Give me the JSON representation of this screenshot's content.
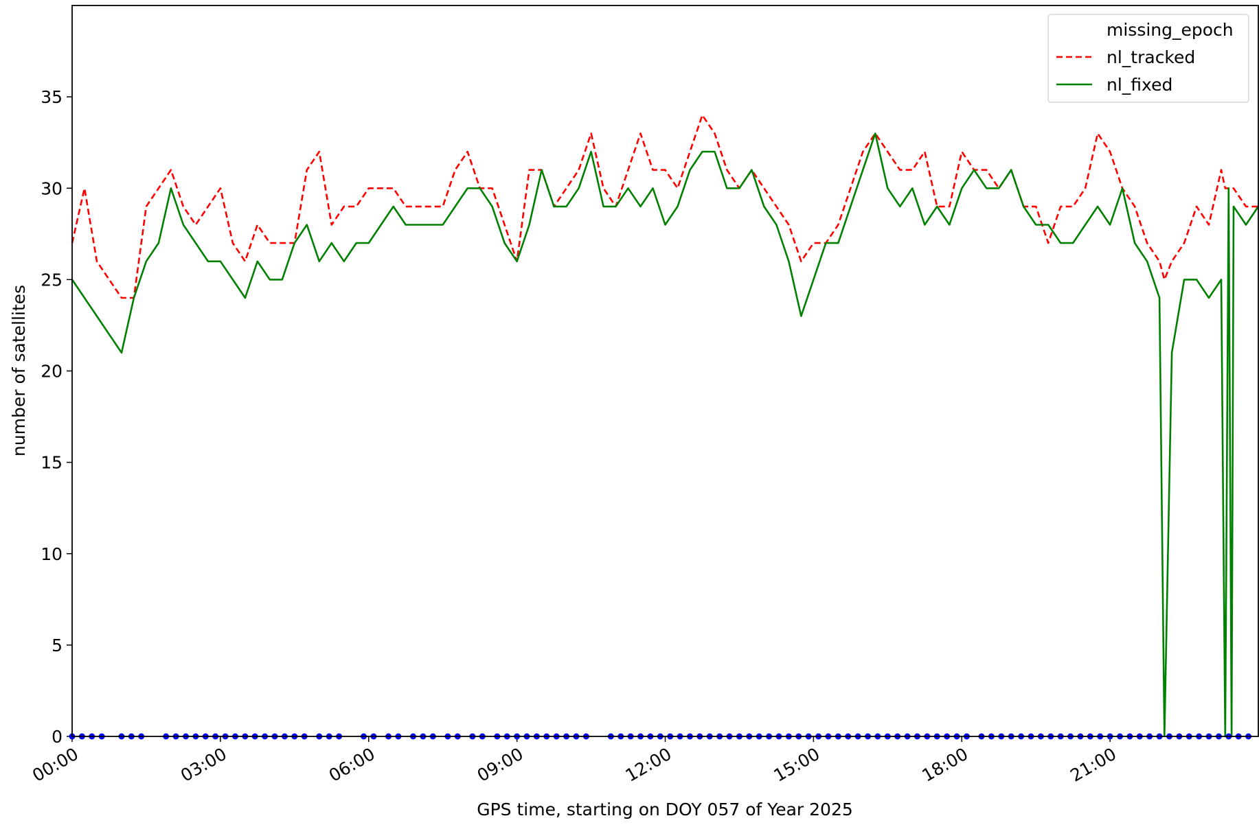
{
  "chart_data": {
    "type": "line",
    "xlabel": "GPS time, starting on DOY 057 of Year 2025",
    "ylabel": "number of satellites",
    "xlim": [
      0,
      24
    ],
    "ylim": [
      0,
      40
    ],
    "xticks": [
      {
        "value": 0,
        "label": "00:00"
      },
      {
        "value": 3,
        "label": "03:00"
      },
      {
        "value": 6,
        "label": "06:00"
      },
      {
        "value": 9,
        "label": "09:00"
      },
      {
        "value": 12,
        "label": "12:00"
      },
      {
        "value": 15,
        "label": "15:00"
      },
      {
        "value": 18,
        "label": "18:00"
      },
      {
        "value": 21,
        "label": "21:00"
      }
    ],
    "yticks": [
      0,
      5,
      10,
      15,
      20,
      25,
      30,
      35
    ],
    "legend": "upper right",
    "x": [
      0,
      0.25,
      0.5,
      0.75,
      1,
      1.25,
      1.5,
      1.75,
      2,
      2.25,
      2.5,
      2.75,
      3,
      3.25,
      3.5,
      3.75,
      4,
      4.25,
      4.5,
      4.75,
      5,
      5.25,
      5.5,
      5.75,
      6,
      6.25,
      6.5,
      6.75,
      7,
      7.25,
      7.5,
      7.75,
      8,
      8.25,
      8.5,
      8.75,
      9,
      9.25,
      9.5,
      9.75,
      10,
      10.25,
      10.5,
      10.75,
      11,
      11.25,
      11.5,
      11.75,
      12,
      12.25,
      12.5,
      12.75,
      13,
      13.25,
      13.5,
      13.75,
      14,
      14.25,
      14.5,
      14.75,
      15,
      15.25,
      15.5,
      15.75,
      16,
      16.25,
      16.5,
      16.75,
      17,
      17.25,
      17.5,
      17.75,
      18,
      18.25,
      18.5,
      18.75,
      19,
      19.25,
      19.5,
      19.75,
      20,
      20.25,
      20.5,
      20.75,
      21,
      21.25,
      21.5,
      21.75,
      22,
      22.1,
      22.25,
      22.5,
      22.75,
      23,
      23.25,
      23.33,
      23.4,
      23.46,
      23.5,
      23.75,
      24
    ],
    "series": [
      {
        "name": "missing_epoch",
        "color": "#0000ff",
        "style": "dots",
        "x": [
          0,
          0.2,
          0.4,
          0.6,
          1.0,
          1.2,
          1.4,
          1.9,
          2.1,
          2.3,
          2.5,
          2.7,
          2.9,
          3.1,
          3.3,
          3.5,
          3.7,
          3.9,
          4.1,
          4.3,
          4.5,
          4.7,
          5.0,
          5.2,
          5.4,
          5.9,
          6.1,
          6.4,
          6.6,
          6.9,
          7.1,
          7.3,
          7.6,
          7.8,
          8.1,
          8.3,
          8.6,
          8.8,
          9.0,
          9.2,
          9.4,
          9.6,
          9.8,
          10.0,
          10.2,
          10.4,
          10.9,
          11.1,
          11.3,
          11.5,
          11.7,
          11.9,
          12.1,
          12.3,
          12.5,
          12.7,
          12.9,
          13.1,
          13.3,
          13.5,
          13.7,
          13.9,
          14.1,
          14.3,
          14.5,
          14.7,
          14.9,
          15.1,
          15.3,
          15.5,
          15.7,
          15.9,
          16.1,
          16.3,
          16.5,
          16.7,
          16.9,
          17.1,
          17.3,
          17.5,
          17.7,
          17.9,
          18.1,
          18.4,
          18.6,
          18.8,
          19.0,
          19.2,
          19.4,
          19.6,
          19.8,
          20.0,
          20.2,
          20.4,
          20.6,
          20.8,
          21.0,
          21.2,
          21.4,
          21.6,
          21.8,
          22.0,
          22.2,
          22.4,
          22.6,
          22.8,
          23.0,
          23.2,
          23.4,
          23.6,
          23.8
        ],
        "values": [
          0,
          0,
          0,
          0,
          0,
          0,
          0,
          0,
          0,
          0,
          0,
          0,
          0,
          0,
          0,
          0,
          0,
          0,
          0,
          0,
          0,
          0,
          0,
          0,
          0,
          0,
          0,
          0,
          0,
          0,
          0,
          0,
          0,
          0,
          0,
          0,
          0,
          0,
          0,
          0,
          0,
          0,
          0,
          0,
          0,
          0,
          0,
          0,
          0,
          0,
          0,
          0,
          0,
          0,
          0,
          0,
          0,
          0,
          0,
          0,
          0,
          0,
          0,
          0,
          0,
          0,
          0,
          0,
          0,
          0,
          0,
          0,
          0,
          0,
          0,
          0,
          0,
          0,
          0,
          0,
          0,
          0,
          0,
          0,
          0,
          0,
          0,
          0,
          0,
          0,
          0,
          0,
          0,
          0,
          0,
          0,
          0,
          0,
          0,
          0,
          0,
          0,
          0,
          0,
          0,
          0,
          0,
          0,
          0,
          0,
          0
        ]
      },
      {
        "name": "nl_tracked",
        "color": "#ff0000",
        "style": "dashed",
        "values": [
          27,
          30,
          26,
          25,
          24,
          24,
          29,
          30,
          31,
          29,
          28,
          29,
          30,
          27,
          26,
          28,
          27,
          27,
          27,
          31,
          32,
          28,
          29,
          29,
          30,
          30,
          30,
          29,
          29,
          29,
          29,
          31,
          32,
          30,
          30,
          28,
          26,
          31,
          31,
          29,
          30,
          31,
          33,
          30,
          29,
          31,
          33,
          31,
          31,
          30,
          32,
          34,
          33,
          31,
          30,
          31,
          30,
          29,
          28,
          26,
          27,
          27,
          28,
          30,
          32,
          33,
          32,
          31,
          31,
          32,
          29,
          29,
          32,
          31,
          31,
          30,
          31,
          29,
          29,
          27,
          29,
          29,
          30,
          33,
          32,
          30,
          29,
          27,
          26,
          25,
          26,
          27,
          29,
          28,
          31,
          30,
          30,
          30,
          30,
          29,
          29
        ]
      },
      {
        "name": "nl_fixed",
        "color": "#008000",
        "style": "solid",
        "values": [
          25,
          24,
          23,
          22,
          21,
          24,
          26,
          27,
          30,
          28,
          27,
          26,
          26,
          25,
          24,
          26,
          25,
          25,
          27,
          28,
          26,
          27,
          26,
          27,
          27,
          28,
          29,
          28,
          28,
          28,
          28,
          29,
          30,
          30,
          29,
          27,
          26,
          28,
          31,
          29,
          29,
          30,
          32,
          29,
          29,
          30,
          29,
          30,
          28,
          29,
          31,
          32,
          32,
          30,
          30,
          31,
          29,
          28,
          26,
          23,
          25,
          27,
          27,
          29,
          31,
          33,
          30,
          29,
          30,
          28,
          29,
          28,
          30,
          31,
          30,
          30,
          31,
          29,
          28,
          28,
          27,
          27,
          28,
          29,
          28,
          30,
          27,
          26,
          24,
          0,
          21,
          25,
          25,
          24,
          25,
          0,
          30,
          0,
          29,
          28,
          29
        ]
      }
    ]
  }
}
